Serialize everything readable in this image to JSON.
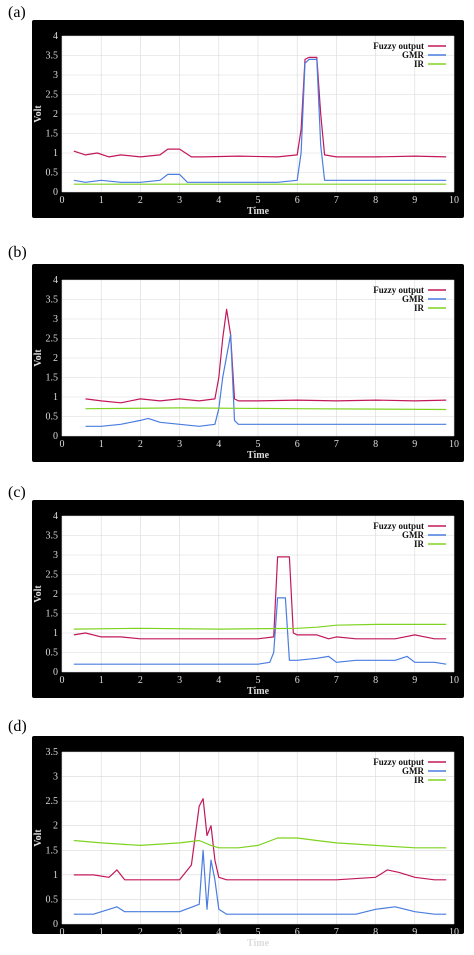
{
  "colors": {
    "fuzzy": "#c2185b",
    "gmr": "#4a7de0",
    "ir": "#7ed321",
    "panel_bg": "#000000",
    "plot_bg": "#ffffff",
    "grid": "#d9d9d9"
  },
  "chart_data": [
    {
      "type": "line",
      "panel_label": "(a)",
      "xlabel": "Time",
      "ylabel": "Volt",
      "xlim": [
        0,
        10
      ],
      "ylim": [
        0,
        4
      ],
      "xticks": [
        "0",
        "1",
        "2",
        "3",
        "4",
        "5",
        "6",
        "7",
        "8",
        "9",
        "10"
      ],
      "yticks": [
        "0",
        "0.5",
        "1",
        "1.5",
        "2",
        "2.5",
        "3",
        "3.5",
        "4"
      ],
      "legend_position": "top-right",
      "grid": true,
      "series": [
        {
          "name": "Fuzzy output",
          "color_key": "fuzzy",
          "x": [
            0.3,
            0.6,
            0.9,
            1.2,
            1.5,
            2.0,
            2.5,
            2.7,
            3.0,
            3.3,
            3.6,
            4.5,
            5.5,
            6.0,
            6.1,
            6.2,
            6.3,
            6.5,
            6.6,
            6.7,
            7.0,
            8.0,
            9.0,
            9.8
          ],
          "y": [
            1.05,
            0.95,
            1.0,
            0.9,
            0.95,
            0.9,
            0.95,
            1.1,
            1.1,
            0.9,
            0.9,
            0.92,
            0.9,
            0.95,
            1.6,
            3.4,
            3.45,
            3.45,
            2.0,
            0.95,
            0.9,
            0.9,
            0.92,
            0.9
          ]
        },
        {
          "name": "GMR",
          "color_key": "gmr",
          "x": [
            0.3,
            0.6,
            1.0,
            1.5,
            2.0,
            2.5,
            2.7,
            3.0,
            3.2,
            3.6,
            4.5,
            5.5,
            6.0,
            6.1,
            6.2,
            6.3,
            6.5,
            6.6,
            6.7,
            7.0,
            8.0,
            9.0,
            9.8
          ],
          "y": [
            0.3,
            0.25,
            0.3,
            0.25,
            0.25,
            0.3,
            0.45,
            0.45,
            0.25,
            0.25,
            0.25,
            0.25,
            0.3,
            1.0,
            3.3,
            3.4,
            3.4,
            1.2,
            0.3,
            0.3,
            0.3,
            0.3,
            0.3
          ]
        },
        {
          "name": "IR",
          "color_key": "ir",
          "x": [
            0.3,
            9.8
          ],
          "y": [
            0.2,
            0.2
          ]
        }
      ]
    },
    {
      "type": "line",
      "panel_label": "(b)",
      "xlabel": "Time",
      "ylabel": "Volt",
      "xlim": [
        0,
        10
      ],
      "ylim": [
        0,
        4
      ],
      "xticks": [
        "0",
        "1",
        "2",
        "3",
        "4",
        "5",
        "6",
        "7",
        "8",
        "9",
        "10"
      ],
      "yticks": [
        "0",
        "0.5",
        "1",
        "1.5",
        "2",
        "2.5",
        "3",
        "3.5",
        "4"
      ],
      "legend_position": "top-right",
      "grid": true,
      "series": [
        {
          "name": "Fuzzy output",
          "color_key": "fuzzy",
          "x": [
            0.6,
            1.0,
            1.5,
            2.0,
            2.5,
            3.0,
            3.5,
            3.9,
            4.0,
            4.1,
            4.2,
            4.3,
            4.4,
            4.5,
            5.0,
            6.0,
            7.0,
            8.0,
            9.0,
            9.8
          ],
          "y": [
            0.95,
            0.9,
            0.85,
            0.95,
            0.9,
            0.95,
            0.9,
            0.95,
            1.5,
            2.5,
            3.25,
            2.6,
            0.95,
            0.9,
            0.9,
            0.92,
            0.9,
            0.92,
            0.9,
            0.92
          ]
        },
        {
          "name": "GMR",
          "color_key": "gmr",
          "x": [
            0.6,
            1.0,
            1.5,
            2.0,
            2.2,
            2.5,
            3.0,
            3.5,
            3.9,
            4.0,
            4.1,
            4.3,
            4.4,
            4.5,
            5.0,
            6.0,
            7.0,
            8.0,
            9.0,
            9.8
          ],
          "y": [
            0.25,
            0.25,
            0.3,
            0.4,
            0.45,
            0.35,
            0.3,
            0.25,
            0.3,
            0.7,
            1.5,
            2.6,
            0.4,
            0.3,
            0.3,
            0.3,
            0.3,
            0.3,
            0.3,
            0.3
          ]
        },
        {
          "name": "IR",
          "color_key": "ir",
          "x": [
            0.6,
            3.0,
            6.0,
            9.8
          ],
          "y": [
            0.7,
            0.72,
            0.7,
            0.68
          ]
        }
      ]
    },
    {
      "type": "line",
      "panel_label": "(c)",
      "xlabel": "Time",
      "ylabel": "Volt",
      "xlim": [
        0,
        10
      ],
      "ylim": [
        0,
        4
      ],
      "xticks": [
        "0",
        "1",
        "2",
        "3",
        "4",
        "5",
        "6",
        "7",
        "8",
        "9",
        "10"
      ],
      "yticks": [
        "0",
        "0.5",
        "1",
        "1.5",
        "2",
        "2.5",
        "3",
        "3.5",
        "4"
      ],
      "legend_position": "top-right",
      "grid": true,
      "series": [
        {
          "name": "Fuzzy output",
          "color_key": "fuzzy",
          "x": [
            0.3,
            0.6,
            1.0,
            1.5,
            2.0,
            3.0,
            4.0,
            5.0,
            5.4,
            5.5,
            5.6,
            5.8,
            5.9,
            6.0,
            6.5,
            6.8,
            7.0,
            7.5,
            8.0,
            8.5,
            9.0,
            9.5,
            9.8
          ],
          "y": [
            0.95,
            1.0,
            0.9,
            0.9,
            0.85,
            0.85,
            0.85,
            0.85,
            0.9,
            2.95,
            2.95,
            2.95,
            1.0,
            0.95,
            0.95,
            0.85,
            0.9,
            0.85,
            0.85,
            0.85,
            0.95,
            0.85,
            0.85
          ]
        },
        {
          "name": "GMR",
          "color_key": "gmr",
          "x": [
            0.3,
            1.0,
            2.0,
            3.0,
            4.0,
            5.0,
            5.3,
            5.4,
            5.5,
            5.7,
            5.8,
            6.0,
            6.5,
            6.8,
            7.0,
            7.5,
            8.0,
            8.5,
            8.8,
            9.0,
            9.5,
            9.8
          ],
          "y": [
            0.2,
            0.2,
            0.2,
            0.2,
            0.2,
            0.2,
            0.25,
            0.5,
            1.9,
            1.9,
            0.3,
            0.3,
            0.35,
            0.4,
            0.25,
            0.3,
            0.3,
            0.3,
            0.4,
            0.25,
            0.25,
            0.2
          ]
        },
        {
          "name": "IR",
          "color_key": "ir",
          "x": [
            0.3,
            2.0,
            4.0,
            6.0,
            6.5,
            7.0,
            8.0,
            9.8
          ],
          "y": [
            1.1,
            1.12,
            1.1,
            1.12,
            1.15,
            1.2,
            1.22,
            1.22
          ]
        }
      ]
    },
    {
      "type": "line",
      "panel_label": "(d)",
      "xlabel": "Time",
      "ylabel": "Volt",
      "xlim": [
        0,
        10
      ],
      "ylim": [
        0,
        3.5
      ],
      "xticks": [
        "0",
        "1",
        "2",
        "3",
        "4",
        "5",
        "6",
        "7",
        "8",
        "9",
        "10"
      ],
      "yticks": [
        "0",
        "0.5",
        "1",
        "1.5",
        "2",
        "2.5",
        "3",
        "3.5"
      ],
      "legend_position": "top-right",
      "grid": true,
      "series": [
        {
          "name": "Fuzzy output",
          "color_key": "fuzzy",
          "x": [
            0.3,
            0.8,
            1.2,
            1.4,
            1.6,
            2.0,
            2.5,
            3.0,
            3.3,
            3.5,
            3.6,
            3.7,
            3.8,
            3.9,
            4.0,
            4.2,
            5.0,
            6.0,
            7.0,
            8.0,
            8.3,
            8.6,
            9.0,
            9.5,
            9.8
          ],
          "y": [
            1.0,
            1.0,
            0.95,
            1.1,
            0.9,
            0.9,
            0.9,
            0.9,
            1.2,
            2.4,
            2.55,
            1.8,
            2.0,
            1.3,
            0.95,
            0.9,
            0.9,
            0.9,
            0.9,
            0.95,
            1.1,
            1.05,
            0.95,
            0.9,
            0.9
          ]
        },
        {
          "name": "GMR",
          "color_key": "gmr",
          "x": [
            0.3,
            0.8,
            1.2,
            1.4,
            1.6,
            2.0,
            2.5,
            3.0,
            3.5,
            3.6,
            3.7,
            3.8,
            3.9,
            4.0,
            4.2,
            5.0,
            6.0,
            7.0,
            7.5,
            8.0,
            8.5,
            9.0,
            9.5,
            9.8
          ],
          "y": [
            0.2,
            0.2,
            0.3,
            0.35,
            0.25,
            0.25,
            0.25,
            0.25,
            0.4,
            1.5,
            0.3,
            1.3,
            0.9,
            0.3,
            0.2,
            0.2,
            0.2,
            0.2,
            0.2,
            0.3,
            0.35,
            0.25,
            0.2,
            0.2
          ]
        },
        {
          "name": "IR",
          "color_key": "ir",
          "x": [
            0.3,
            1.0,
            2.0,
            3.0,
            3.5,
            3.8,
            4.0,
            4.5,
            5.0,
            5.5,
            6.0,
            6.5,
            7.0,
            8.0,
            9.0,
            9.8
          ],
          "y": [
            1.7,
            1.65,
            1.6,
            1.65,
            1.7,
            1.6,
            1.55,
            1.55,
            1.6,
            1.75,
            1.75,
            1.7,
            1.65,
            1.6,
            1.55,
            1.55
          ]
        }
      ]
    }
  ]
}
